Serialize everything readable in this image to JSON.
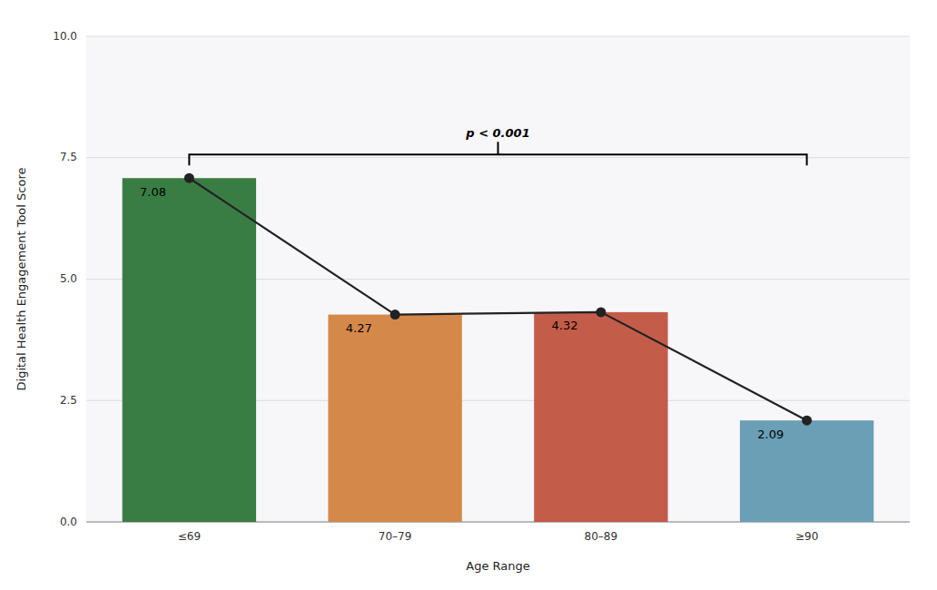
{
  "chart_data": {
    "type": "bar",
    "categories": [
      "≤69",
      "70–79",
      "80–89",
      "≥90"
    ],
    "values": [
      7.08,
      4.27,
      4.32,
      2.09
    ],
    "colors": [
      "#3a7d44",
      "#d4884a",
      "#c45c4a",
      "#6a9fb5"
    ],
    "xlabel": "Age Range",
    "ylabel": "Digital Health Engagement Tool Score",
    "ylim": [
      0,
      10.0
    ],
    "yticks": [
      {
        "value": 0.0,
        "label": "0.0"
      },
      2.5,
      {
        "value": 5.0,
        "label": "5.0"
      },
      7.5,
      {
        "value": 10.0,
        "label": "10.0"
      }
    ],
    "grid": true,
    "data_labels": true,
    "annotation": "p < 0.001"
  }
}
